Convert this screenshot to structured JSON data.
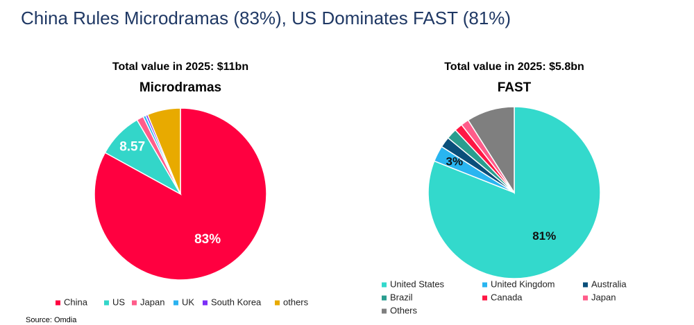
{
  "title": "China Rules Microdramas (83%), US Dominates FAST (81%)",
  "source": "Source: Omdia",
  "chart_data": [
    {
      "type": "pie",
      "subtitle": "Total value in 2025: $11bn",
      "title": "Microdramas",
      "categories": [
        "China",
        "US",
        "Japan",
        "UK",
        "South Korea",
        "others"
      ],
      "values": [
        83,
        8.57,
        1.3,
        0.5,
        0.4,
        6.23
      ],
      "value_labels": [
        "83%",
        "8.57",
        null,
        null,
        null,
        null
      ],
      "colors": [
        "#ff0040",
        "#33d6c9",
        "#ff5c8a",
        "#2bb3f0",
        "#7b2ff7",
        "#e8aa00"
      ]
    },
    {
      "type": "pie",
      "subtitle": "Total value in 2025: $5.8bn",
      "title": "FAST",
      "categories": [
        "United States",
        "United Kingdom",
        "Australia",
        "Brazil",
        "Canada",
        "Japan",
        "Others"
      ],
      "values": [
        81,
        3,
        2,
        2,
        1.5,
        1.5,
        9
      ],
      "value_labels": [
        "81%",
        "3%",
        null,
        null,
        null,
        null,
        null
      ],
      "colors": [
        "#33d9cc",
        "#29b5f0",
        "#0a4f7a",
        "#2a9d8f",
        "#ff1744",
        "#ff5c8a",
        "#7f7f7f"
      ]
    }
  ]
}
